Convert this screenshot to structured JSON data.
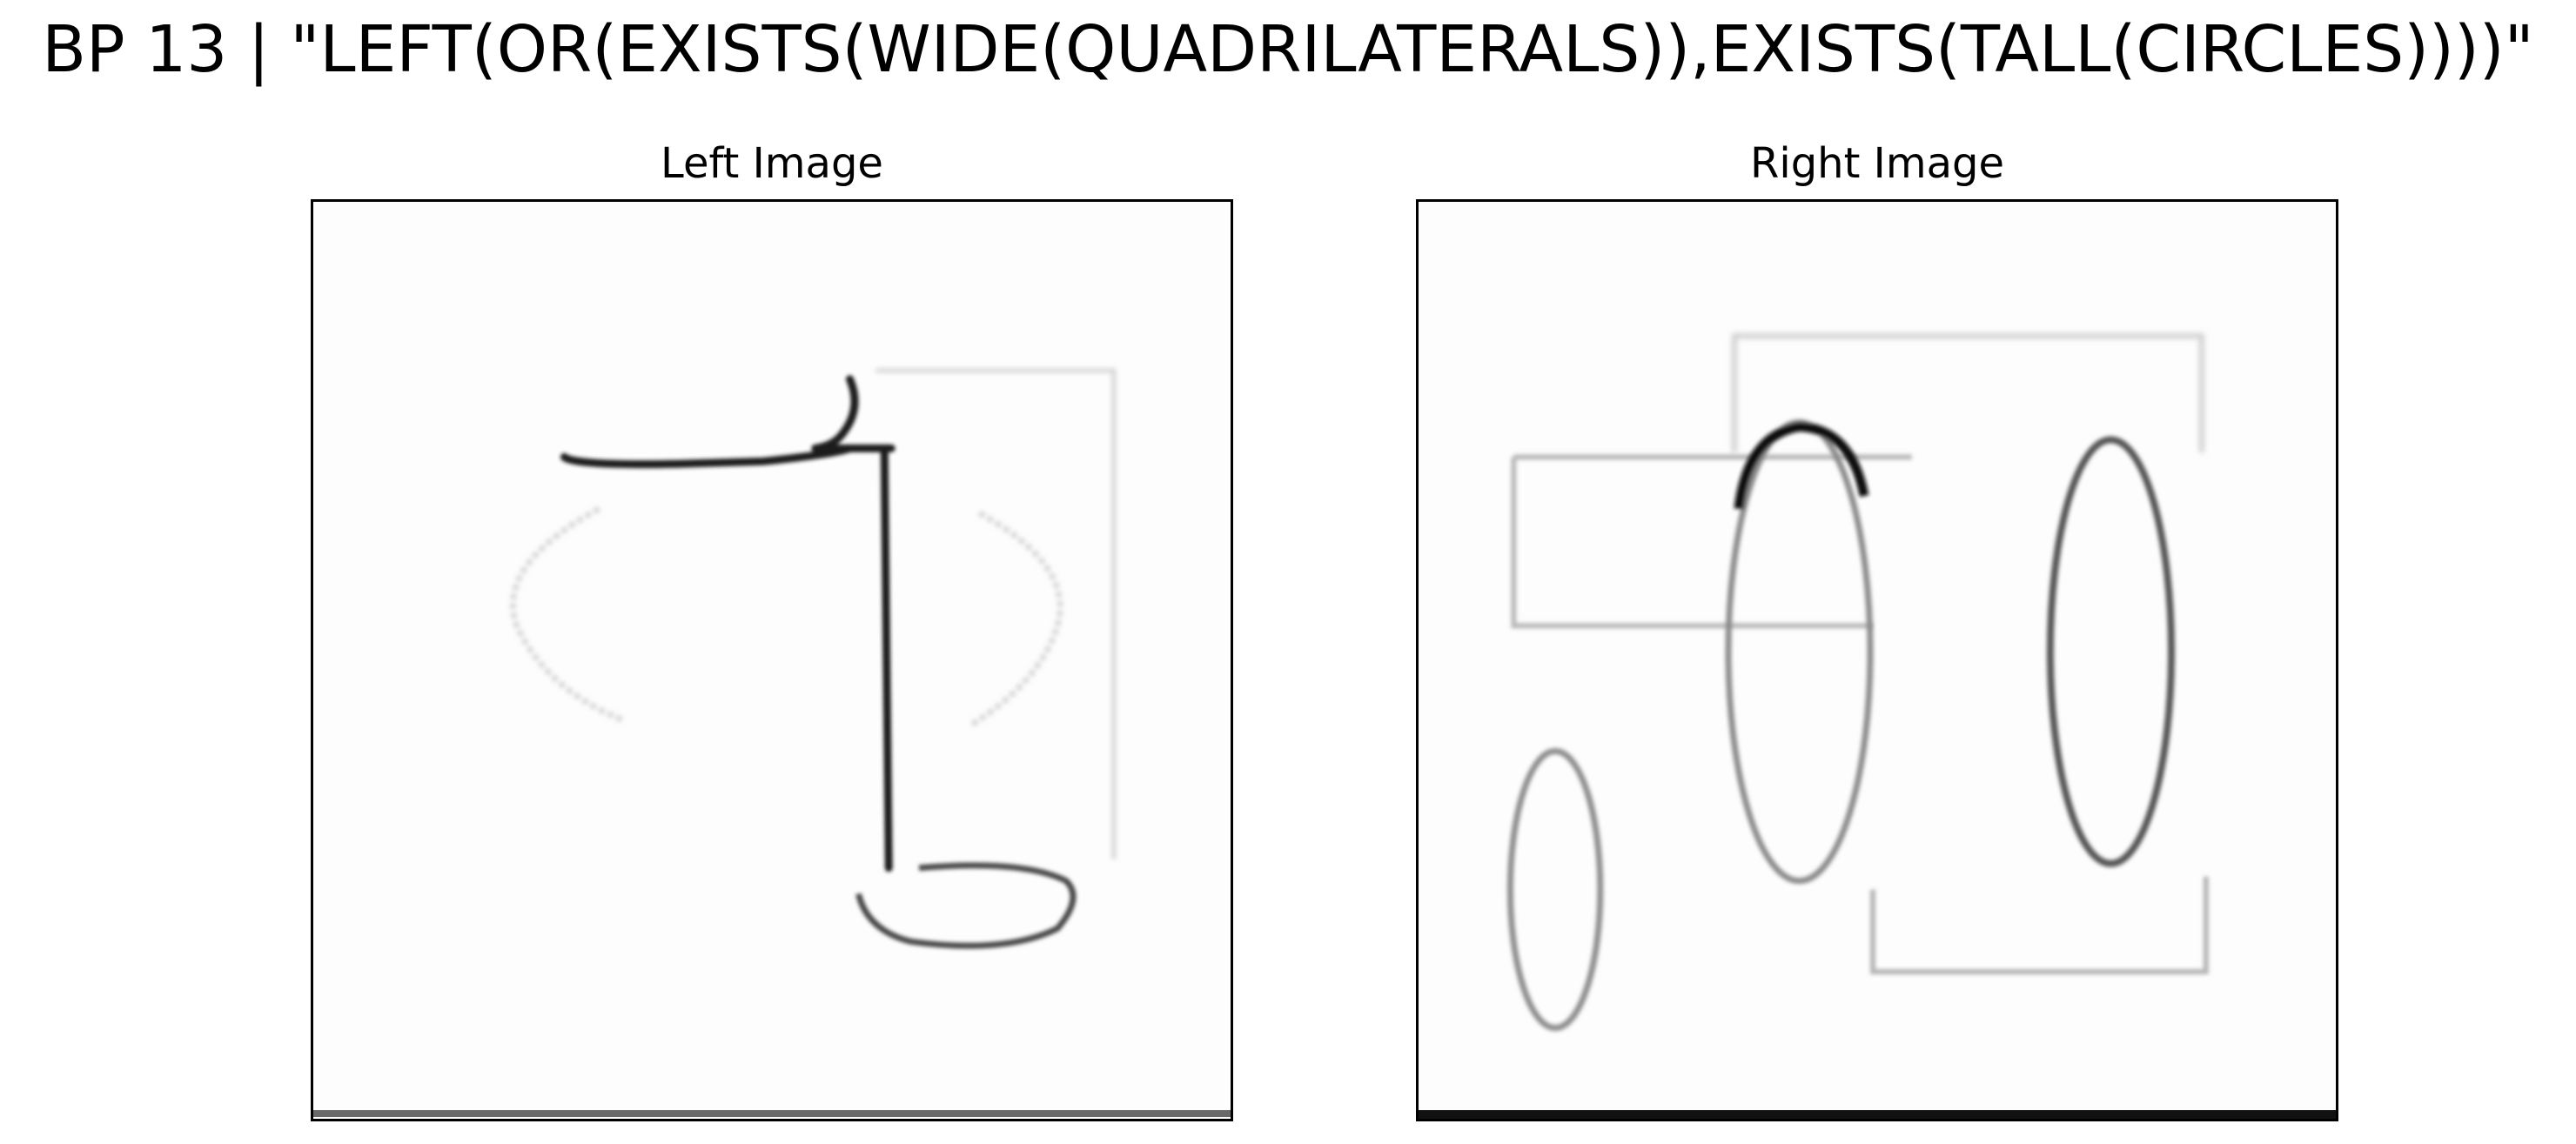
{
  "title": "BP 13 | \"LEFT(OR(EXISTS(WIDE(QUADRILATERALS)),EXISTS(TALL(CIRCLES))))\"",
  "panels": {
    "left": {
      "title": "Left Image"
    },
    "right": {
      "title": "Right Image"
    }
  },
  "colors": {
    "stroke_dark": "#111111",
    "stroke_faint": "#c8c8c8",
    "border": "#000000"
  }
}
